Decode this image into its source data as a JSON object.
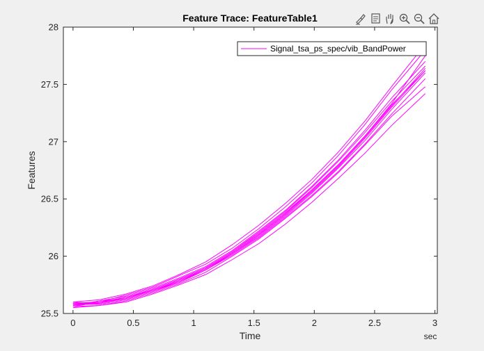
{
  "toolbar": {
    "icons": [
      "brush-icon",
      "datatip-icon",
      "pan-icon",
      "zoom-in-icon",
      "zoom-out-icon",
      "home-icon"
    ]
  },
  "chart_data": {
    "type": "line",
    "title": "Feature Trace: FeatureTable1",
    "xlabel": "Time",
    "ylabel": "Features",
    "x_unit": "sec",
    "xlim": [
      -0.08,
      3.02
    ],
    "ylim": [
      25.5,
      28
    ],
    "xticks": [
      0,
      0.5,
      1,
      1.5,
      2,
      2.5,
      3
    ],
    "xtick_labels": [
      "0",
      "0.5",
      "1",
      "1.5",
      "2",
      "2.5",
      "3"
    ],
    "yticks": [
      25.5,
      26,
      26.5,
      27,
      27.5,
      28
    ],
    "ytick_labels": [
      "25.5",
      "26",
      "26.5",
      "27",
      "27.5",
      "28"
    ],
    "grid": false,
    "legend": {
      "position": "top-right",
      "entries": [
        "Signal_tsa_ps_spec/vib_BandPower"
      ]
    },
    "color": "#ff00ff",
    "x": [
      0,
      0.22,
      0.44,
      0.66,
      0.88,
      1.1,
      1.32,
      1.54,
      1.76,
      1.98,
      2.2,
      2.42,
      2.64,
      2.92
    ],
    "series": [
      {
        "values": [
          25.58,
          25.59,
          25.64,
          25.71,
          25.8,
          25.9,
          26.04,
          26.2,
          26.38,
          26.58,
          26.8,
          27.05,
          27.32,
          27.62
        ]
      },
      {
        "values": [
          25.56,
          25.6,
          25.66,
          25.73,
          25.83,
          25.93,
          26.07,
          26.24,
          26.43,
          26.64,
          26.88,
          27.15,
          27.45,
          27.8
        ]
      },
      {
        "values": [
          25.6,
          25.58,
          25.62,
          25.69,
          25.77,
          25.88,
          26.02,
          26.17,
          26.35,
          26.55,
          26.77,
          27.01,
          27.28,
          27.6
        ]
      },
      {
        "values": [
          25.57,
          25.61,
          25.65,
          25.72,
          25.81,
          25.91,
          26.05,
          26.22,
          26.4,
          26.61,
          26.84,
          27.1,
          27.38,
          27.7
        ]
      },
      {
        "values": [
          25.59,
          25.6,
          25.63,
          25.7,
          25.79,
          25.89,
          26.03,
          26.19,
          26.37,
          26.57,
          26.79,
          27.04,
          27.31,
          27.64
        ]
      },
      {
        "values": [
          25.55,
          25.57,
          25.61,
          25.68,
          25.76,
          25.86,
          26.0,
          26.15,
          26.33,
          26.52,
          26.73,
          26.97,
          27.22,
          27.48
        ]
      },
      {
        "values": [
          25.58,
          25.58,
          25.62,
          25.69,
          25.78,
          25.88,
          26.01,
          26.16,
          26.34,
          26.53,
          26.74,
          26.98,
          27.24,
          27.55
        ]
      },
      {
        "values": [
          25.57,
          25.59,
          25.64,
          25.71,
          25.8,
          25.9,
          26.04,
          26.21,
          26.39,
          26.6,
          26.83,
          27.08,
          27.35,
          27.66
        ]
      },
      {
        "values": [
          25.6,
          25.62,
          25.67,
          25.74,
          25.84,
          25.95,
          26.1,
          26.27,
          26.46,
          26.67,
          26.91,
          27.18,
          27.48,
          27.85
        ]
      },
      {
        "values": [
          25.56,
          25.57,
          25.6,
          25.67,
          25.75,
          25.84,
          25.97,
          26.11,
          26.28,
          26.47,
          26.68,
          26.9,
          27.14,
          27.42
        ]
      },
      {
        "values": [
          25.58,
          25.6,
          25.64,
          25.7,
          25.79,
          25.89,
          26.03,
          26.19,
          26.37,
          26.58,
          26.8,
          27.05,
          27.33,
          27.75
        ]
      },
      {
        "values": [
          25.59,
          25.59,
          25.63,
          25.7,
          25.78,
          25.89,
          26.02,
          26.18,
          26.36,
          26.56,
          26.78,
          27.03,
          27.3,
          27.62
        ]
      }
    ]
  }
}
